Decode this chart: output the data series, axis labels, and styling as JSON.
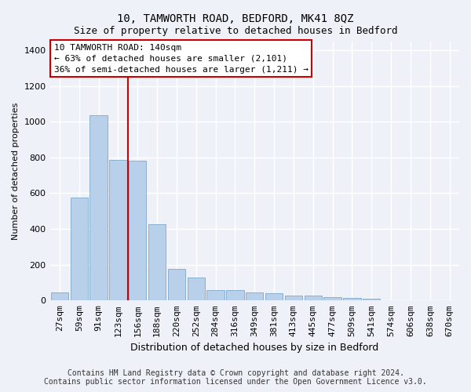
{
  "title": "10, TAMWORTH ROAD, BEDFORD, MK41 8QZ",
  "subtitle": "Size of property relative to detached houses in Bedford",
  "xlabel": "Distribution of detached houses by size in Bedford",
  "ylabel": "Number of detached properties",
  "footer_line1": "Contains HM Land Registry data © Crown copyright and database right 2024.",
  "footer_line2": "Contains public sector information licensed under the Open Government Licence v3.0.",
  "annotation_line1": "10 TAMWORTH ROAD: 140sqm",
  "annotation_line2": "← 63% of detached houses are smaller (2,101)",
  "annotation_line3": "36% of semi-detached houses are larger (1,211) →",
  "bar_labels": [
    "27sqm",
    "59sqm",
    "91sqm",
    "123sqm",
    "156sqm",
    "188sqm",
    "220sqm",
    "252sqm",
    "284sqm",
    "316sqm",
    "349sqm",
    "381sqm",
    "413sqm",
    "445sqm",
    "477sqm",
    "509sqm",
    "541sqm",
    "574sqm",
    "606sqm",
    "638sqm",
    "670sqm"
  ],
  "bar_values": [
    45,
    575,
    1035,
    785,
    780,
    425,
    175,
    130,
    60,
    60,
    45,
    40,
    28,
    28,
    20,
    15,
    12,
    0,
    0,
    0,
    0
  ],
  "bar_color": "#b8d0ea",
  "bar_edge_color": "#8ab0d0",
  "marker_color": "#cc0000",
  "red_line_x": 3.52,
  "ylim": [
    0,
    1450
  ],
  "yticks": [
    0,
    200,
    400,
    600,
    800,
    1000,
    1200,
    1400
  ],
  "background_color": "#eef2f8",
  "grid_color": "#ffffff",
  "annotation_box_facecolor": "#ffffff",
  "annotation_box_edgecolor": "#cc0000",
  "title_fontsize": 10,
  "subtitle_fontsize": 9,
  "xlabel_fontsize": 9,
  "ylabel_fontsize": 8,
  "tick_fontsize": 8,
  "annotation_fontsize": 8,
  "footer_fontsize": 7,
  "figsize": [
    6.0,
    5.0
  ],
  "dpi": 100
}
